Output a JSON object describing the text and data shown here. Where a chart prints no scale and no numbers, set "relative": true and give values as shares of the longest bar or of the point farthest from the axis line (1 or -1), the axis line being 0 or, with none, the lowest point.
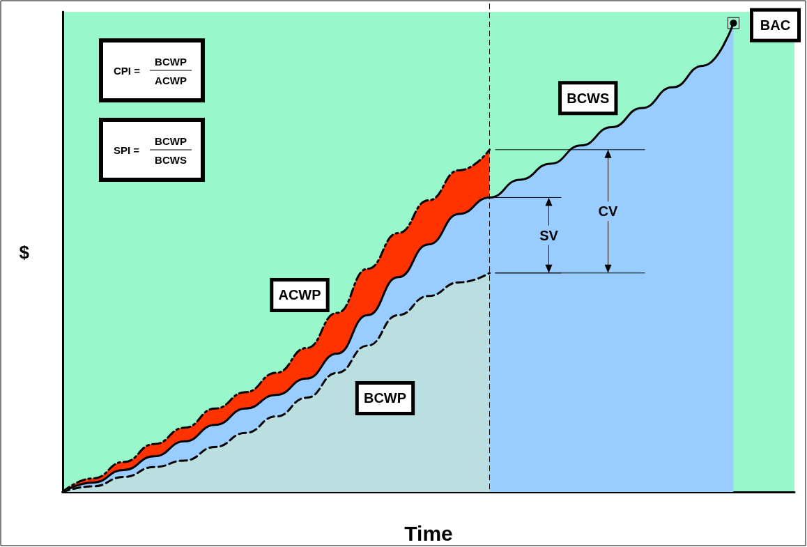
{
  "chart_data": {
    "type": "area",
    "relative": true,
    "xlabel": "Time",
    "ylabel": "$",
    "legend": false,
    "grid": false,
    "categories": [
      null,
      null,
      null,
      null,
      null,
      null,
      null,
      null,
      null,
      null,
      null,
      null,
      null,
      null,
      null,
      null,
      null,
      null,
      null,
      null,
      null,
      null,
      null,
      null,
      null
    ],
    "series": [
      {
        "name": "ACWP",
        "color": "#ff3300",
        "line_style": "dashdot",
        "values": [
          0,
          0.029,
          0.064,
          0.102,
          0.137,
          0.178,
          0.213,
          0.254,
          0.307,
          0.382,
          0.476,
          0.552,
          0.622,
          0.686,
          0.73,
          null,
          null,
          null,
          null,
          null,
          null,
          null,
          null,
          null,
          null
        ]
      },
      {
        "name": "BCWS",
        "color": "#99ccff",
        "line_style": "solid",
        "values": [
          0,
          0.02,
          0.047,
          0.076,
          0.108,
          0.143,
          0.178,
          0.207,
          0.242,
          0.295,
          0.377,
          0.458,
          0.528,
          0.593,
          0.628,
          0.666,
          0.7,
          0.739,
          0.778,
          0.819,
          0.863,
          0.909,
          1,
          null,
          null
        ]
      },
      {
        "name": "BCWP",
        "color": "#bbdfe0",
        "line_style": "dashed",
        "values": [
          0,
          0.012,
          0.032,
          0.053,
          0.067,
          0.096,
          0.126,
          0.161,
          0.201,
          0.254,
          0.312,
          0.377,
          0.418,
          0.447,
          0.467,
          null,
          null,
          null,
          null,
          null,
          null,
          null,
          null,
          null,
          null
        ]
      }
    ],
    "annotations": [
      "CPI =",
      "BCWP",
      "ACWP",
      "SPI =",
      "BCWP",
      "BCWS",
      "SV",
      "CV",
      "BAC"
    ]
  }
}
